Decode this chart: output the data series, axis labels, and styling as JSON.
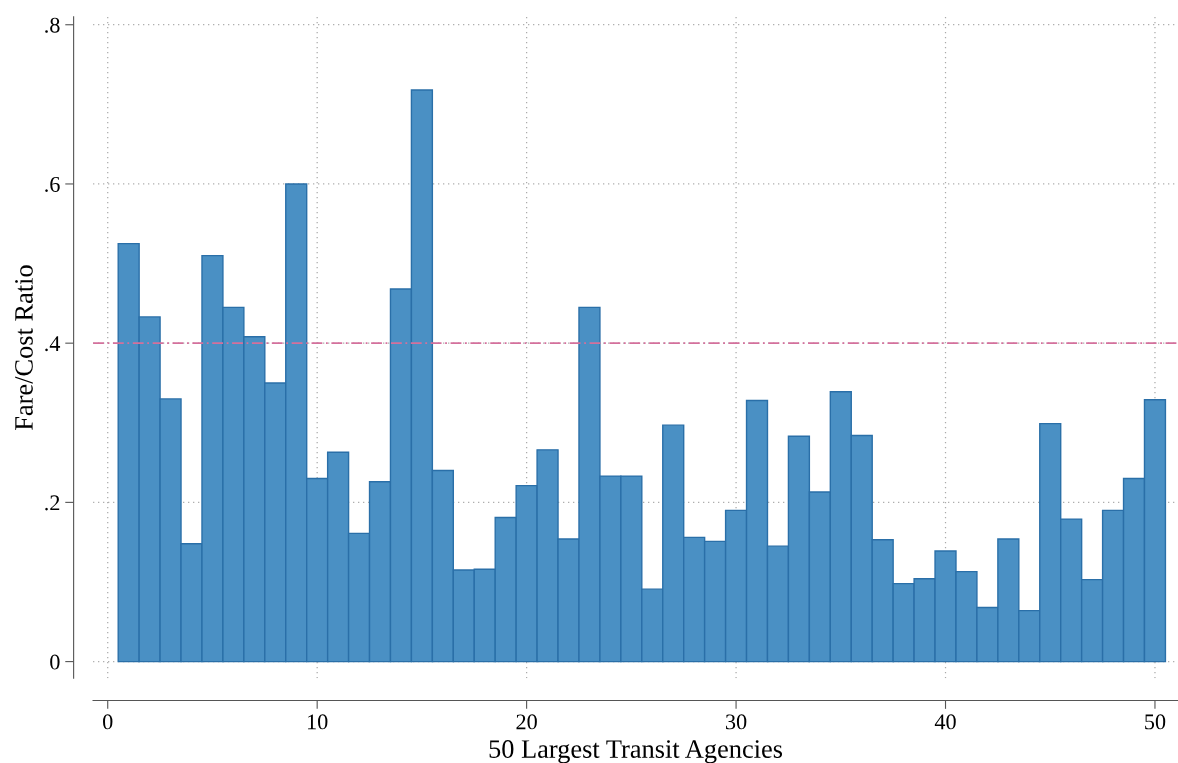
{
  "chart_data": {
    "type": "bar",
    "xlabel": "50 Largest Transit Agencies",
    "ylabel": "Fare/Cost Ratio",
    "x": [
      1,
      2,
      3,
      4,
      5,
      6,
      7,
      8,
      9,
      10,
      11,
      12,
      13,
      14,
      15,
      16,
      17,
      18,
      19,
      20,
      21,
      22,
      23,
      24,
      25,
      26,
      27,
      28,
      29,
      30,
      31,
      32,
      33,
      34,
      35,
      36,
      37,
      38,
      39,
      40,
      41,
      42,
      43,
      44,
      45,
      46,
      47,
      48,
      49,
      50
    ],
    "values": [
      0.525,
      0.433,
      0.33,
      0.148,
      0.51,
      0.445,
      0.408,
      0.35,
      0.6,
      0.23,
      0.263,
      0.161,
      0.226,
      0.468,
      0.718,
      0.24,
      0.115,
      0.116,
      0.181,
      0.221,
      0.266,
      0.154,
      0.445,
      0.233,
      0.233,
      0.091,
      0.297,
      0.156,
      0.151,
      0.19,
      0.328,
      0.145,
      0.283,
      0.213,
      0.339,
      0.284,
      0.153,
      0.098,
      0.104,
      0.139,
      0.113,
      0.068,
      0.154,
      0.064,
      0.299,
      0.179,
      0.103,
      0.19,
      0.23,
      0.329
    ],
    "color": "#4a90c4",
    "xlim": [
      -0.7,
      51.1
    ],
    "ylim": [
      -0.021,
      0.81
    ],
    "xticks": [
      0,
      10,
      20,
      30,
      40,
      50
    ],
    "yticks": [
      {
        "value": 0,
        "label": "0"
      },
      {
        "value": 0.2,
        "label": ".2"
      },
      {
        "value": 0.4,
        "label": ".4"
      },
      {
        "value": 0.6,
        "label": ".6"
      },
      {
        "value": 0.8,
        "label": ".8"
      }
    ],
    "grid": true,
    "ref_lines": [
      {
        "axis": "y",
        "value": 0.4,
        "color": "#d4709c",
        "line_style": "dashed"
      }
    ]
  }
}
